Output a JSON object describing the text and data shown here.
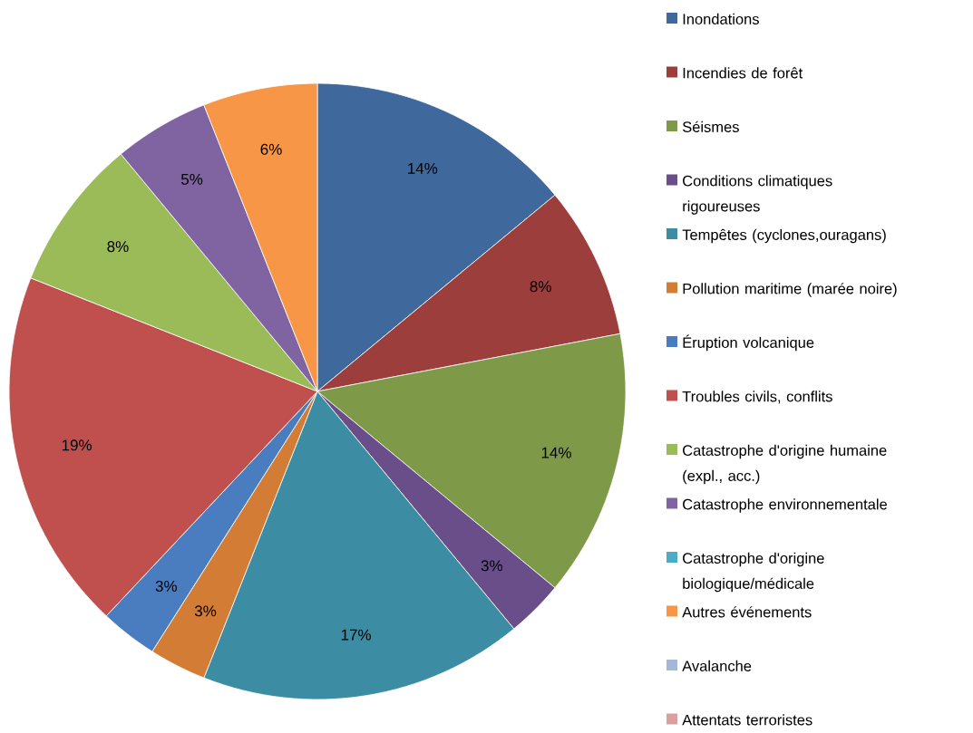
{
  "chart_data": {
    "type": "pie",
    "categories": [
      "Inondations",
      "Incendies de forêt",
      "Séismes",
      "Conditions climatiques rigoureuses",
      "Tempêtes (cyclones,ouragans)",
      "Pollution maritime (marée noire)",
      "Éruption volcanique",
      "Troubles civils, conflits",
      "Catastrophe d'origine humaine (expl., acc.)",
      "Catastrophe environnementale",
      "Catastrophe d'origine biologique/médicale",
      "Autres événements",
      "Avalanche",
      "Attentats terroristes"
    ],
    "values": [
      14,
      8,
      14,
      3,
      17,
      3,
      3,
      19,
      8,
      5,
      0,
      6,
      0,
      0
    ],
    "value_labels": [
      "14%",
      "8%",
      "14%",
      "3%",
      "17%",
      "3%",
      "3%",
      "19%",
      "8%",
      "5%",
      null,
      "6%",
      null,
      null
    ],
    "colors": [
      "#3f689d",
      "#9c3e3c",
      "#7e9a48",
      "#6a4e8a",
      "#3c8ca3",
      "#d27c36",
      "#4a7cc0",
      "#c0504d",
      "#9bbb59",
      "#8064a2",
      "#4bacc6",
      "#f79646",
      "#a5b7d8",
      "#d9a0a0"
    ],
    "legend": "right"
  }
}
